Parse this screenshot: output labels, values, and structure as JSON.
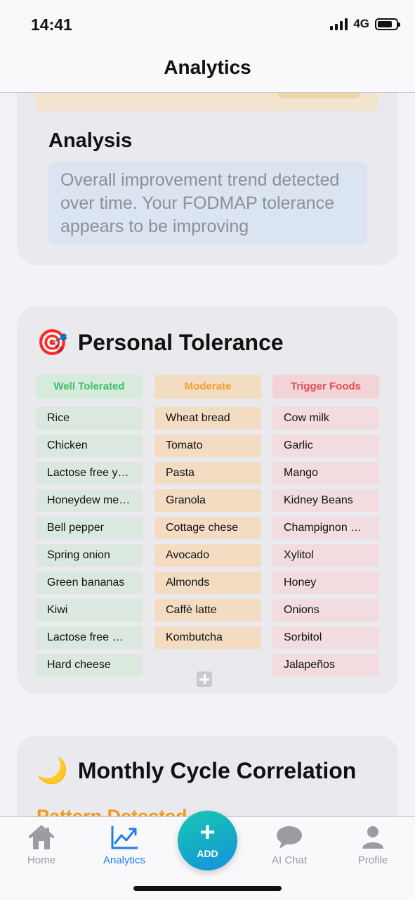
{
  "status": {
    "time": "14:41",
    "network": "4G",
    "battery_level": 0.8
  },
  "header": {
    "title": "Analytics"
  },
  "analysis": {
    "title": "Analysis",
    "text": "Overall improvement trend detected over time. Your FODMAP tolerance appears to be improving"
  },
  "tolerance": {
    "icon": "target-icon",
    "emoji": "🎯",
    "title": "Personal Tolerance",
    "columns": {
      "well": {
        "header": "Well Tolerated",
        "color": "#3ec06a",
        "items": [
          "Rice",
          "Chicken",
          "Lactose free yog...",
          "Honeydew melon",
          "Bell pepper",
          "Spring onion",
          "Green bananas",
          "Kiwi",
          "Lactose free milk",
          "Hard cheese"
        ]
      },
      "moderate": {
        "header": "Moderate",
        "color": "#f2a12e",
        "items": [
          "Wheat bread",
          "Tomato",
          "Pasta",
          "Granola",
          "Cottage chese",
          "Avocado",
          "Almonds",
          "Caffè latte",
          "Kombutcha"
        ]
      },
      "trigger": {
        "header": "Trigger Foods",
        "color": "#e34d58",
        "items": [
          "Cow milk",
          "Garlic",
          "Mango",
          "Kidney Beans",
          "Champignon mu...",
          "Xylitol",
          "Honey",
          "Onions",
          "Sorbitol",
          "Jalapeños"
        ]
      }
    }
  },
  "cycle": {
    "icon": "moon-icon",
    "emoji": "🌙",
    "title": "Monthly Cycle Correlation",
    "pattern_label": "Pattern Detected"
  },
  "tabbar": {
    "home": {
      "label": "Home",
      "icon": "home-icon"
    },
    "analytics": {
      "label": "Analytics",
      "icon": "chart-icon"
    },
    "add": {
      "label": "ADD",
      "icon": "plus-icon"
    },
    "aichat": {
      "label": "AI Chat",
      "icon": "chat-bubble-icon"
    },
    "profile": {
      "label": "Profile",
      "icon": "person-icon"
    }
  },
  "colors": {
    "accent": "#1e7cf0",
    "fab": "#14a8c9"
  }
}
